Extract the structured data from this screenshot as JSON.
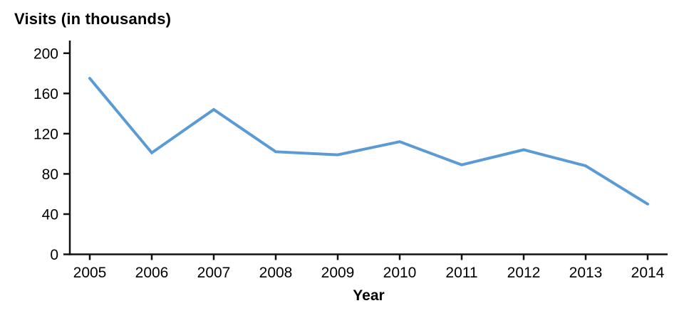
{
  "chart_data": {
    "type": "line",
    "title": "Visits (in thousands)",
    "xlabel": "Year",
    "ylabel": "",
    "categories": [
      "2005",
      "2006",
      "2007",
      "2008",
      "2009",
      "2010",
      "2011",
      "2012",
      "2013",
      "2014"
    ],
    "values": [
      175,
      101,
      144,
      102,
      99,
      112,
      89,
      104,
      88,
      50
    ],
    "ylim": [
      0,
      200
    ],
    "y_ticks": [
      0,
      40,
      80,
      120,
      160,
      200
    ],
    "grid": false,
    "legend": "none",
    "line_color": "#5b9bd5",
    "axis_color": "#111111",
    "text_color": "#000000"
  }
}
